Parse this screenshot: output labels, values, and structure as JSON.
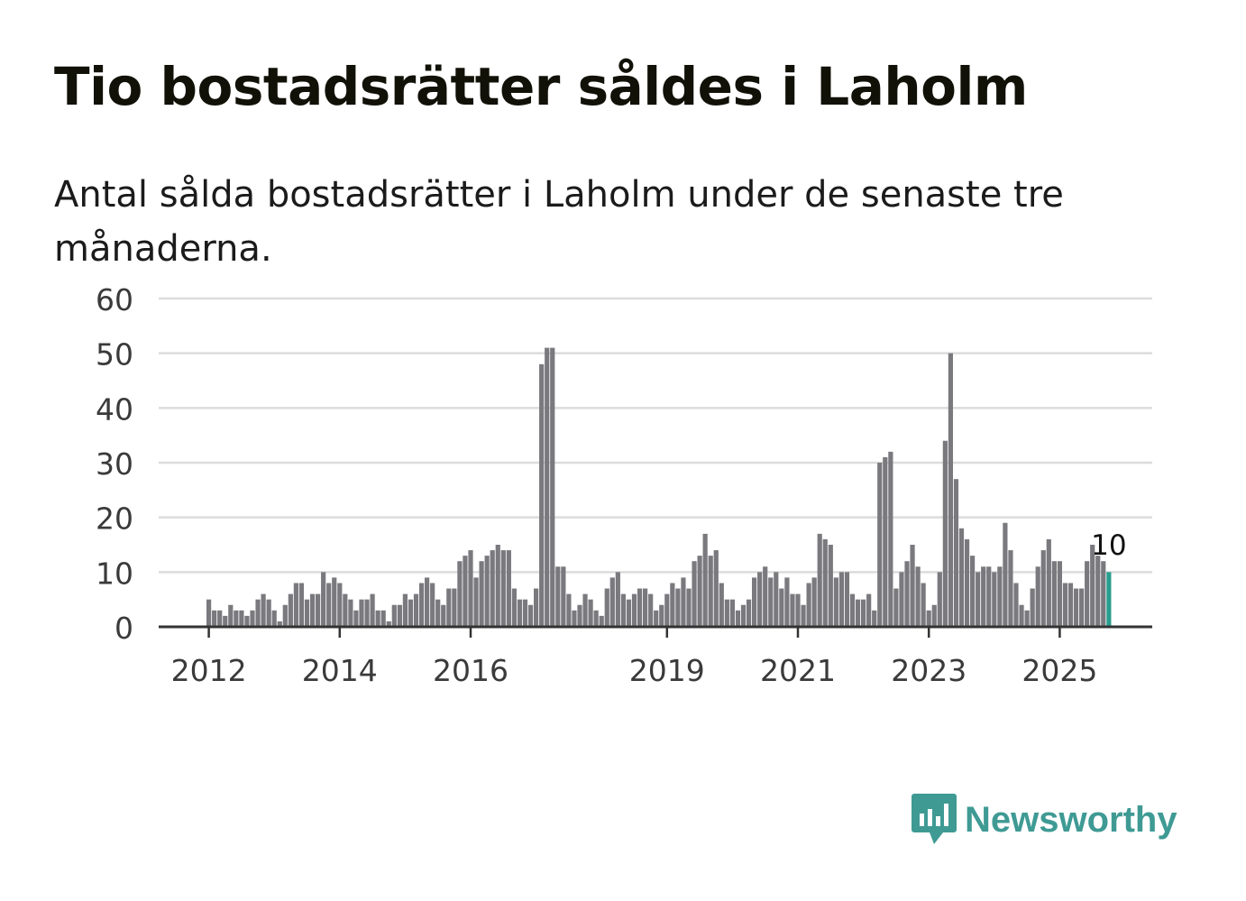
{
  "header": {
    "title": "Tio bostadsrätter såldes i Laholm",
    "subtitle": "Antal sålda bostadsrätter i Laholm under de senaste tre månaderna."
  },
  "brand": {
    "name": "Newsworthy",
    "color": "#3f9a94",
    "icon": "newsworthy-logo-icon"
  },
  "chart_data": {
    "type": "bar",
    "title": "Tio bostadsrätter såldes i Laholm",
    "subtitle": "Antal sålda bostadsrätter i Laholm under de senaste tre månaderna.",
    "xlabel": "",
    "ylabel": "",
    "ylim": [
      0,
      60
    ],
    "yticks": [
      "0",
      "10",
      "20",
      "30",
      "40",
      "50",
      "60"
    ],
    "xticks": [
      {
        "label": "2012",
        "month_index": 0
      },
      {
        "label": "2014",
        "month_index": 24
      },
      {
        "label": "2016",
        "month_index": 48
      },
      {
        "label": "2019",
        "month_index": 84
      },
      {
        "label": "2021",
        "month_index": 108
      },
      {
        "label": "2023",
        "month_index": 132
      },
      {
        "label": "2025",
        "month_index": 156
      }
    ],
    "grid": true,
    "legend": "none",
    "series": [
      {
        "name": "Antal sålda bostadsrätter",
        "color": "#7a797e",
        "start": "2012-01",
        "values": [
          5,
          3,
          3,
          2,
          4,
          3,
          3,
          2,
          3,
          5,
          6,
          5,
          3,
          1,
          4,
          6,
          8,
          8,
          5,
          6,
          6,
          10,
          8,
          9,
          8,
          6,
          5,
          3,
          5,
          5,
          6,
          3,
          3,
          1,
          4,
          4,
          6,
          5,
          6,
          8,
          9,
          8,
          5,
          4,
          7,
          7,
          12,
          13,
          14,
          9,
          12,
          13,
          14,
          15,
          14,
          14,
          7,
          5,
          5,
          4,
          7,
          48,
          51,
          51,
          11,
          11,
          6,
          3,
          4,
          6,
          5,
          3,
          2,
          7,
          9,
          10,
          6,
          5,
          6,
          7,
          7,
          6,
          3,
          4,
          6,
          8,
          7,
          9,
          7,
          12,
          13,
          17,
          13,
          14,
          8,
          5,
          5,
          3,
          4,
          5,
          9,
          10,
          11,
          9,
          10,
          7,
          9,
          6,
          6,
          4,
          8,
          9,
          17,
          16,
          15,
          9,
          10,
          10,
          6,
          5,
          5,
          6,
          3,
          30,
          31,
          32,
          7,
          10,
          12,
          15,
          11,
          8,
          3,
          4,
          10,
          34,
          50,
          27,
          18,
          16,
          13,
          10,
          11,
          11,
          10,
          11,
          19,
          14,
          8,
          4,
          3,
          7,
          11,
          14,
          16,
          12,
          12,
          8,
          8,
          7,
          7,
          12,
          15,
          13,
          12,
          10
        ]
      }
    ],
    "highlight": {
      "label": "10",
      "value": 10,
      "color": "#2a9d8f"
    }
  }
}
